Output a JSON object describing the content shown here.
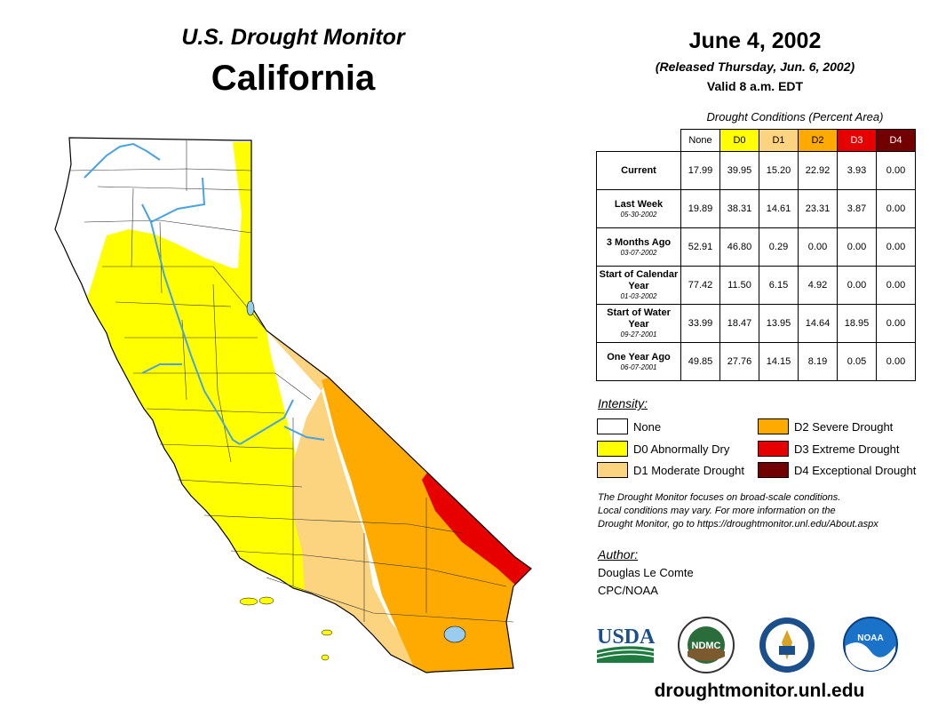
{
  "header": {
    "title": "U.S. Drought Monitor",
    "region": "California",
    "date": "June 4, 2002",
    "released": "(Released Thursday, Jun. 6, 2002)",
    "valid": "Valid 8 a.m. EDT"
  },
  "table": {
    "caption": "Drought Conditions (Percent Area)",
    "columns": [
      "None",
      "D0",
      "D1",
      "D2",
      "D3",
      "D4"
    ],
    "rows": [
      {
        "label": "Current",
        "date": "",
        "values": [
          "17.99",
          "39.95",
          "15.20",
          "22.92",
          "3.93",
          "0.00"
        ]
      },
      {
        "label": "Last Week",
        "date": "05-30-2002",
        "values": [
          "19.89",
          "38.31",
          "14.61",
          "23.31",
          "3.87",
          "0.00"
        ]
      },
      {
        "label": "3 Months Ago",
        "date": "03-07-2002",
        "values": [
          "52.91",
          "46.80",
          "0.29",
          "0.00",
          "0.00",
          "0.00"
        ]
      },
      {
        "label": "Start of Calendar Year",
        "date": "01-03-2002",
        "values": [
          "77.42",
          "11.50",
          "6.15",
          "4.92",
          "0.00",
          "0.00"
        ]
      },
      {
        "label": "Start of Water Year",
        "date": "09-27-2001",
        "values": [
          "33.99",
          "18.47",
          "13.95",
          "14.64",
          "18.95",
          "0.00"
        ]
      },
      {
        "label": "One Year Ago",
        "date": "06-07-2001",
        "values": [
          "49.85",
          "27.76",
          "14.15",
          "8.19",
          "0.05",
          "0.00"
        ]
      }
    ]
  },
  "legend": {
    "title": "Intensity:",
    "items": [
      {
        "label": "None",
        "color": "#ffffff"
      },
      {
        "label": "D0 Abnormally Dry",
        "color": "#ffff00"
      },
      {
        "label": "D1 Moderate Drought",
        "color": "#fcd37f"
      },
      {
        "label": "D2 Severe Drought",
        "color": "#ffaa00"
      },
      {
        "label": "D3 Extreme Drought",
        "color": "#e60000"
      },
      {
        "label": "D4 Exceptional Drought",
        "color": "#730000"
      }
    ]
  },
  "note": {
    "line1": "The Drought Monitor focuses on broad-scale conditions.",
    "line2": "Local conditions may vary. For more information on the",
    "line3": "Drought Monitor, go to https://droughtmonitor.unl.edu/About.aspx"
  },
  "author": {
    "title": "Author:",
    "name": "Douglas Le Comte",
    "org": "CPC/NOAA"
  },
  "logos": {
    "usda": "USDA",
    "ndmc": "NDMC",
    "noaa": "NOAA"
  },
  "footer": {
    "url": "droughtmonitor.unl.edu"
  },
  "colors": {
    "none": "#ffffff",
    "d0": "#ffff00",
    "d1": "#fcd37f",
    "d2": "#ffaa00",
    "d3": "#e60000",
    "d4": "#730000",
    "water": "#4aa3df",
    "lake": "#99ccee"
  }
}
